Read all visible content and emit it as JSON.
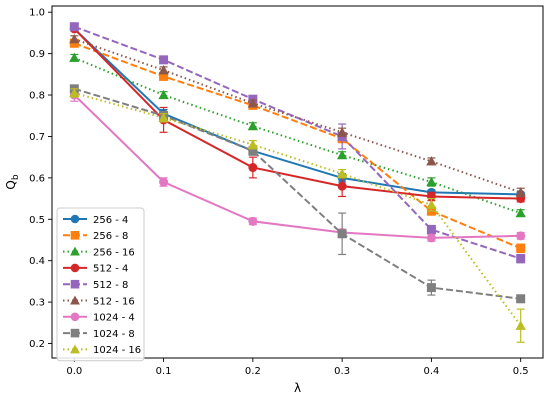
{
  "chart_data": {
    "type": "line",
    "xlabel": "λ",
    "ylabel": "Q_b",
    "ylabel_main": "Q",
    "ylabel_sub": "b",
    "xlim": [
      -0.025,
      0.525
    ],
    "ylim": [
      0.165,
      1.015
    ],
    "xticks": [
      0.0,
      0.1,
      0.2,
      0.3,
      0.4,
      0.5
    ],
    "xtick_labels": [
      "0.0",
      "0.1",
      "0.2",
      "0.3",
      "0.4",
      "0.5"
    ],
    "yticks": [
      0.2,
      0.3,
      0.4,
      0.5,
      0.6,
      0.7,
      0.8,
      0.9,
      1.0
    ],
    "ytick_labels": [
      "0.2",
      "0.3",
      "0.4",
      "0.5",
      "0.6",
      "0.7",
      "0.8",
      "0.9",
      "1.0"
    ],
    "grid": false,
    "legend_position": "lower-left",
    "x": [
      0.0,
      0.1,
      0.2,
      0.3,
      0.4,
      0.5
    ],
    "series": [
      {
        "name": "256 - 4",
        "color": "#1f77b4",
        "style": "solid",
        "marker": "circle",
        "values": [
          0.96,
          0.755,
          0.665,
          0.6,
          0.565,
          0.56
        ],
        "errors": [
          0.005,
          0.01,
          0.01,
          0.01,
          0.005,
          0.005
        ]
      },
      {
        "name": "256 - 8",
        "color": "#ff7f0e",
        "style": "dashed",
        "marker": "square",
        "values": [
          0.925,
          0.845,
          0.775,
          0.695,
          0.52,
          0.43
        ],
        "errors": [
          0.008,
          0.008,
          0.008,
          0.01,
          0.01,
          0.01
        ]
      },
      {
        "name": "256 - 16",
        "color": "#2ca02c",
        "style": "dotted",
        "marker": "triangle",
        "values": [
          0.89,
          0.8,
          0.725,
          0.655,
          0.59,
          0.515
        ],
        "errors": [
          0.008,
          0.008,
          0.008,
          0.008,
          0.01,
          0.008
        ]
      },
      {
        "name": "512 - 4",
        "color": "#d62728",
        "style": "solid",
        "marker": "circle",
        "values": [
          0.96,
          0.74,
          0.625,
          0.58,
          0.555,
          0.55
        ],
        "errors": [
          0.005,
          0.03,
          0.025,
          0.025,
          0.01,
          0.008
        ]
      },
      {
        "name": "512 - 8",
        "color": "#9467bd",
        "style": "dashed",
        "marker": "square",
        "values": [
          0.965,
          0.885,
          0.79,
          0.7,
          0.475,
          0.405
        ],
        "errors": [
          0.005,
          0.008,
          0.008,
          0.03,
          0.01,
          0.01
        ]
      },
      {
        "name": "512 - 16",
        "color": "#8c564b",
        "style": "dotted",
        "marker": "triangle",
        "values": [
          0.935,
          0.86,
          0.78,
          0.71,
          0.64,
          0.565
        ],
        "errors": [
          0.008,
          0.008,
          0.008,
          0.01,
          0.008,
          0.01
        ]
      },
      {
        "name": "1024 - 4",
        "color": "#e377c2",
        "style": "solid",
        "marker": "circle",
        "values": [
          0.8,
          0.59,
          0.495,
          0.468,
          0.455,
          0.46
        ],
        "errors": [
          0.015,
          0.01,
          0.008,
          0.008,
          0.008,
          0.008
        ]
      },
      {
        "name": "1024 - 8",
        "color": "#7f7f7f",
        "style": "dashed",
        "marker": "square",
        "values": [
          0.815,
          0.75,
          0.665,
          0.465,
          0.335,
          0.308
        ],
        "errors": [
          0.008,
          0.01,
          0.01,
          0.05,
          0.018,
          0.008
        ]
      },
      {
        "name": "1024 - 16",
        "color": "#bcbd22",
        "style": "dotted",
        "marker": "triangle",
        "values": [
          0.805,
          0.745,
          0.68,
          0.61,
          0.535,
          0.243
        ],
        "errors": [
          0.01,
          0.01,
          0.01,
          0.01,
          0.015,
          0.04
        ]
      }
    ]
  }
}
